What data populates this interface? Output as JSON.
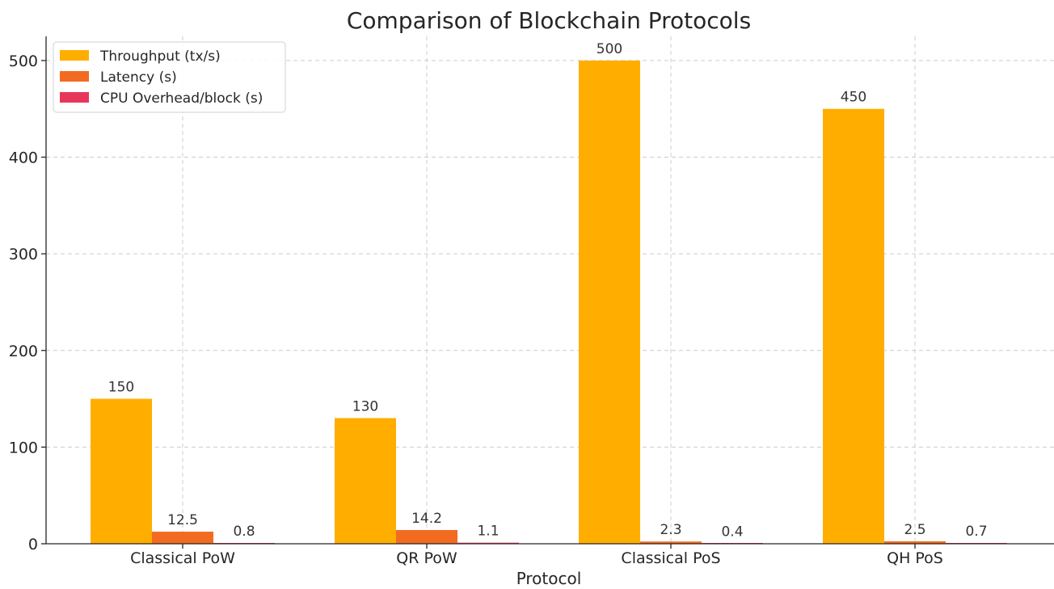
{
  "chart_data": {
    "type": "bar",
    "title": "Comparison of Blockchain Protocols",
    "xlabel": "Protocol",
    "ylabel": "",
    "categories": [
      "Classical PoW",
      "QR PoW",
      "Classical PoS",
      "QH PoS"
    ],
    "series": [
      {
        "name": "Throughput (tx/s)",
        "values": [
          150,
          130,
          500,
          450
        ],
        "labels": [
          "150",
          "130",
          "500",
          "450"
        ],
        "color": "#FFAE00"
      },
      {
        "name": "Latency (s)",
        "values": [
          12.5,
          14.2,
          2.3,
          2.5
        ],
        "labels": [
          "12.5",
          "14.2",
          "2.3",
          "2.5"
        ],
        "color": "#F26B21"
      },
      {
        "name": "CPU Overhead/block (s)",
        "values": [
          0.8,
          1.1,
          0.4,
          0.7
        ],
        "labels": [
          "0.8",
          "1.1",
          "0.4",
          "0.7"
        ],
        "color": "#E8365A"
      }
    ],
    "yticks": [
      0,
      100,
      200,
      300,
      400,
      500
    ],
    "ylim": [
      0,
      525
    ],
    "grid": true,
    "legend": "top-left"
  }
}
